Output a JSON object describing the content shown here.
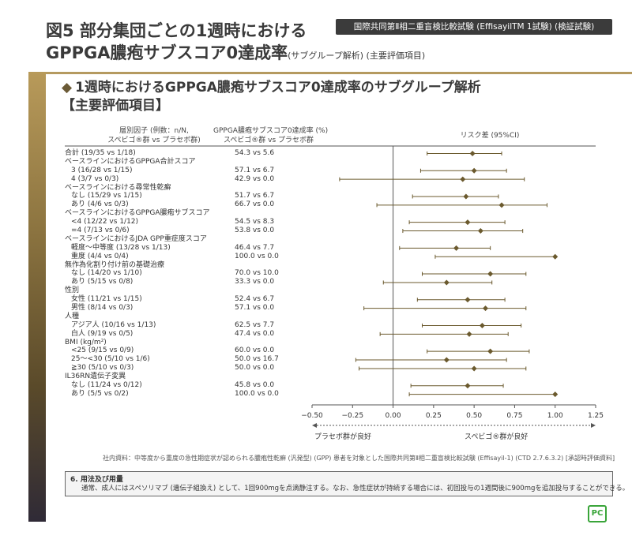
{
  "header": {
    "title_line1": "図5 部分集団ごとの1週時における",
    "title_line2_main": "GPPGA膿疱サブスコア0達成率",
    "title_line2_sub": "(サブグループ解析) (主要評価項目)",
    "trial_badge": "国際共同第Ⅱ相二重盲検比較試験 (EffisayilTM 1試験) (検証試験)"
  },
  "section": {
    "bullet": "◆",
    "title_line1": "1週時におけるGPPGA膿疱サブスコア0達成率のサブグループ解析",
    "title_line2": "【主要評価項目】"
  },
  "column_headers": {
    "factor_line1": "層別因子 (例数：n/N,",
    "factor_line2": "スペビゴ®群 vs プラセボ群)",
    "rate_line1": "GPPGA膿疱サブスコア0達成率 (%)",
    "rate_line2": "スペビゴ®群 vs プラセボ群",
    "risk": "リスク差 (95%CI)"
  },
  "rows": [
    {
      "label": "合計 (19/35 vs 1/18)",
      "value": "54.3 vs 5.6",
      "indent": false
    },
    {
      "label": "ベースラインにおけるGPPGA合計スコア",
      "value": "",
      "indent": false
    },
    {
      "label": "3 (16/28 vs 1/15)",
      "value": "57.1 vs 6.7",
      "indent": true
    },
    {
      "label": "4 (3/7 vs 0/3)",
      "value": "42.9 vs 0.0",
      "indent": true
    },
    {
      "label": "ベースラインにおける尋常性乾癬",
      "value": "",
      "indent": false
    },
    {
      "label": "なし (15/29 vs 1/15)",
      "value": "51.7 vs 6.7",
      "indent": true
    },
    {
      "label": "あり (4/6 vs 0/3)",
      "value": "66.7 vs 0.0",
      "indent": true
    },
    {
      "label": "ベースラインにおけるGPPGA膿疱サブスコア",
      "value": "",
      "indent": false
    },
    {
      "label": "<4 (12/22 vs 1/12)",
      "value": "54.5 vs 8.3",
      "indent": true
    },
    {
      "label": "=4 (7/13 vs 0/6)",
      "value": "53.8 vs 0.0",
      "indent": true
    },
    {
      "label": "ベースラインにおけるJDA GPP重症度スコア",
      "value": "",
      "indent": false
    },
    {
      "label": "軽度～中等度 (13/28 vs 1/13)",
      "value": "46.4 vs 7.7",
      "indent": true
    },
    {
      "label": "重度 (4/4 vs 0/4)",
      "value": "100.0 vs 0.0",
      "indent": true
    },
    {
      "label": "無作為化割り付け前の基礎治療",
      "value": "",
      "indent": false
    },
    {
      "label": "なし (14/20 vs 1/10)",
      "value": "70.0 vs 10.0",
      "indent": true
    },
    {
      "label": "あり (5/15 vs 0/8)",
      "value": "33.3 vs 0.0",
      "indent": true
    },
    {
      "label": "性別",
      "value": "",
      "indent": false
    },
    {
      "label": "女性 (11/21 vs 1/15)",
      "value": "52.4 vs 6.7",
      "indent": true
    },
    {
      "label": "男性 (8/14 vs 0/3)",
      "value": "57.1 vs 0.0",
      "indent": true
    },
    {
      "label": "人種",
      "value": "",
      "indent": false
    },
    {
      "label": "アジア人 (10/16 vs 1/13)",
      "value": "62.5 vs 7.7",
      "indent": true
    },
    {
      "label": "白人 (9/19 vs 0/5)",
      "value": "47.4 vs 0.0",
      "indent": true
    },
    {
      "label": "BMI (kg/m²)",
      "value": "",
      "indent": false
    },
    {
      "label": "<25 (9/15 vs 0/9)",
      "value": "60.0 vs 0.0",
      "indent": true
    },
    {
      "label": "25～<30 (5/10 vs 1/6)",
      "value": "50.0 vs 16.7",
      "indent": true
    },
    {
      "label": "≧30 (5/10 vs 0/3)",
      "value": "50.0 vs 0.0",
      "indent": true
    },
    {
      "label": "IL36RN遺伝子変異",
      "value": "",
      "indent": false
    },
    {
      "label": "なし (11/24 vs 0/12)",
      "value": "45.8 vs 0.0",
      "indent": true
    },
    {
      "label": "あり (5/5 vs 0/2)",
      "value": "100.0 vs 0.0",
      "indent": true
    }
  ],
  "chart_data": {
    "type": "forest",
    "xlabel": "",
    "xlim": [
      -0.5,
      1.25
    ],
    "xticks": [
      -0.5,
      -0.25,
      0.0,
      0.25,
      0.5,
      0.75,
      1.0,
      1.25
    ],
    "xtick_labels": [
      "−0.50",
      "−0.25",
      "0.00",
      "0.25",
      "0.50",
      "0.75",
      "1.00",
      "1.25"
    ],
    "reference_line": 0,
    "direction_left": "プラセボ群が良好",
    "direction_right": "スペビゴ®群が良好",
    "point_color": "#6b5a2e",
    "points": [
      {
        "row": 0,
        "est": 0.49,
        "lo": 0.21,
        "hi": 0.67
      },
      {
        "row": 2,
        "est": 0.5,
        "lo": 0.17,
        "hi": 0.7
      },
      {
        "row": 3,
        "est": 0.43,
        "lo": -0.33,
        "hi": 0.81
      },
      {
        "row": 5,
        "est": 0.45,
        "lo": 0.12,
        "hi": 0.65
      },
      {
        "row": 6,
        "est": 0.67,
        "lo": -0.1,
        "hi": 0.95
      },
      {
        "row": 8,
        "est": 0.46,
        "lo": 0.1,
        "hi": 0.69
      },
      {
        "row": 9,
        "est": 0.54,
        "lo": 0.06,
        "hi": 0.8
      },
      {
        "row": 11,
        "est": 0.39,
        "lo": 0.04,
        "hi": 0.6
      },
      {
        "row": 12,
        "est": 1.0,
        "lo": 0.26,
        "hi": 1.0
      },
      {
        "row": 14,
        "est": 0.6,
        "lo": 0.18,
        "hi": 0.82
      },
      {
        "row": 15,
        "est": 0.33,
        "lo": -0.06,
        "hi": 0.61
      },
      {
        "row": 17,
        "est": 0.46,
        "lo": 0.15,
        "hi": 0.69
      },
      {
        "row": 18,
        "est": 0.57,
        "lo": -0.18,
        "hi": 0.82
      },
      {
        "row": 20,
        "est": 0.55,
        "lo": 0.18,
        "hi": 0.79
      },
      {
        "row": 21,
        "est": 0.47,
        "lo": -0.08,
        "hi": 0.71
      },
      {
        "row": 23,
        "est": 0.6,
        "lo": 0.21,
        "hi": 0.84
      },
      {
        "row": 24,
        "est": 0.33,
        "lo": -0.23,
        "hi": 0.7
      },
      {
        "row": 25,
        "est": 0.5,
        "lo": -0.21,
        "hi": 0.82
      },
      {
        "row": 27,
        "est": 0.46,
        "lo": 0.11,
        "hi": 0.68
      },
      {
        "row": 28,
        "est": 1.0,
        "lo": 0.1,
        "hi": 1.0
      }
    ]
  },
  "note": "社内資料：中等度から重度の急性期症状が認められる膿疱性乾癬 (汎発型) (GPP) 患者を対象とした国際共同第Ⅱ相二重盲検比較試験 (Effisayil-1) (CTD 2.7.6.3.2) [承認時評価資料]",
  "usage": {
    "heading": "6. 用法及び用量",
    "text": "通常、成人にはスペソリマブ (遺伝子組換え) として、1回900mgを点滴静注する。なお、急性症状が持続する場合には、初回投与の1週間後に900mgを追加投与することができる。"
  },
  "logo": "PC"
}
